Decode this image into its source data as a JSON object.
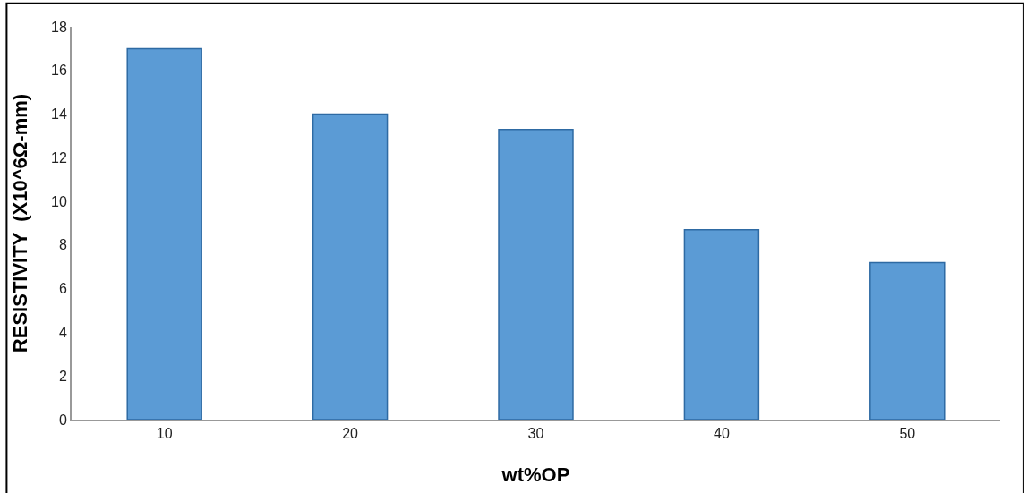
{
  "chart_data": {
    "type": "bar",
    "xlabel": "wt%OP",
    "ylabel": "RESISTIVITY  (X10^6Ω-mm)",
    "categories": [
      "10",
      "20",
      "30",
      "40",
      "50"
    ],
    "values": [
      17.0,
      14.0,
      13.3,
      8.7,
      7.2
    ],
    "color": "#5b9bd5",
    "ylim": [
      0,
      18
    ],
    "yticks": [
      0,
      2,
      4,
      6,
      8,
      10,
      12,
      14,
      16,
      18
    ]
  }
}
